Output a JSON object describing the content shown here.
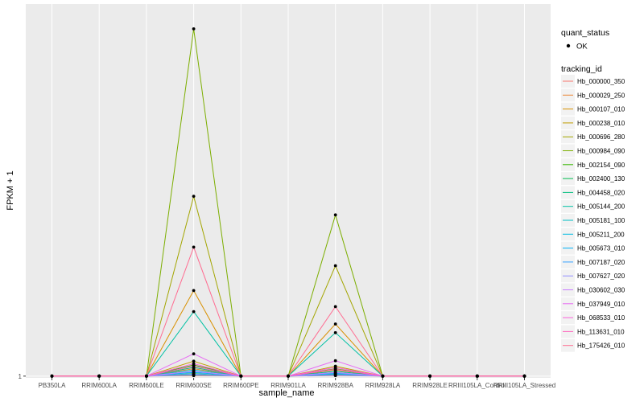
{
  "chart_data": {
    "type": "line",
    "xlabel": "sample_name",
    "ylabel": "FPKM + 1",
    "y_ticks": [
      {
        "value": 1,
        "label": "1"
      }
    ],
    "ylim": [
      0.93,
      16.0
    ],
    "grid": true,
    "legend_position": "right",
    "categories": [
      "PB350LA",
      "RRIM600LA",
      "RRIM600LE",
      "RRIM600SE",
      "RRIM600PE",
      "RRIM901LA",
      "RRIM928BA",
      "RRIM928LA",
      "RRIM928LE",
      "RRIII105LA_Control",
      "RRIII105LA_Stressed"
    ],
    "point_legend": {
      "title": "quant_status",
      "entries": [
        {
          "label": "OK"
        }
      ]
    },
    "series_legend_title": "tracking_id",
    "series": [
      {
        "name": "Hb_000000_350",
        "color": "#F8766D",
        "values": [
          1,
          1,
          1,
          1.02,
          1,
          1,
          1.02,
          1,
          1,
          1,
          1
        ]
      },
      {
        "name": "Hb_000029_250",
        "color": "#EA8331",
        "values": [
          1,
          1,
          1,
          1.3,
          1,
          1,
          1.25,
          1,
          1,
          1,
          1
        ]
      },
      {
        "name": "Hb_000107_010",
        "color": "#D89000",
        "values": [
          1,
          1,
          1,
          4.45,
          1,
          1,
          3.1,
          1,
          1,
          1,
          1
        ]
      },
      {
        "name": "Hb_000238_010",
        "color": "#C09B00",
        "values": [
          1,
          1,
          1,
          1.6,
          1,
          1,
          1.4,
          1,
          1,
          1,
          1
        ]
      },
      {
        "name": "Hb_000696_280",
        "color": "#A3A500",
        "values": [
          1,
          1,
          1,
          8.25,
          1,
          1,
          5.45,
          1,
          1,
          1,
          1
        ]
      },
      {
        "name": "Hb_000984_090",
        "color": "#7CAE00",
        "values": [
          1,
          1,
          1,
          15.0,
          1,
          1,
          7.5,
          1,
          1,
          1,
          1
        ]
      },
      {
        "name": "Hb_002154_090",
        "color": "#39B600",
        "values": [
          1,
          1,
          1,
          1.45,
          1,
          1,
          1.3,
          1,
          1,
          1,
          1
        ]
      },
      {
        "name": "Hb_002400_130",
        "color": "#00BB4E",
        "values": [
          1,
          1,
          1,
          1.1,
          1,
          1,
          1.08,
          1,
          1,
          1,
          1
        ]
      },
      {
        "name": "Hb_004458_020",
        "color": "#00BF7D",
        "values": [
          1,
          1,
          1,
          1.35,
          1,
          1,
          1.2,
          1,
          1,
          1,
          1
        ]
      },
      {
        "name": "Hb_005144_200",
        "color": "#00C1A3",
        "values": [
          1,
          1,
          1,
          3.6,
          1,
          1,
          2.75,
          1,
          1,
          1,
          1
        ]
      },
      {
        "name": "Hb_005181_100",
        "color": "#00BFC4",
        "values": [
          1,
          1,
          1,
          1.25,
          1,
          1,
          1.15,
          1,
          1,
          1,
          1
        ]
      },
      {
        "name": "Hb_005211_200",
        "color": "#00BAE0",
        "values": [
          1,
          1,
          1,
          1.05,
          1,
          1,
          1.04,
          1,
          1,
          1,
          1
        ]
      },
      {
        "name": "Hb_005673_010",
        "color": "#00B0F6",
        "values": [
          1,
          1,
          1,
          1.15,
          1,
          1,
          1.1,
          1,
          1,
          1,
          1
        ]
      },
      {
        "name": "Hb_007187_020",
        "color": "#35A2FF",
        "values": [
          1,
          1,
          1,
          1.18,
          1,
          1,
          1.12,
          1,
          1,
          1,
          1
        ]
      },
      {
        "name": "Hb_007627_020",
        "color": "#9590FF",
        "values": [
          1,
          1,
          1,
          1.08,
          1,
          1,
          1.05,
          1,
          1,
          1,
          1
        ]
      },
      {
        "name": "Hb_030602_030",
        "color": "#C77CFF",
        "values": [
          1,
          1,
          1,
          1.2,
          1,
          1,
          1.15,
          1,
          1,
          1,
          1
        ]
      },
      {
        "name": "Hb_037949_010",
        "color": "#E76BF3",
        "values": [
          1,
          1,
          1,
          1.9,
          1,
          1,
          1.62,
          1,
          1,
          1,
          1
        ]
      },
      {
        "name": "Hb_068533_010",
        "color": "#FA62DB",
        "values": [
          1,
          1,
          1,
          1.5,
          1,
          1,
          1.35,
          1,
          1,
          1,
          1
        ]
      },
      {
        "name": "Hb_113631_010",
        "color": "#FF62BC",
        "values": [
          1,
          1,
          1,
          1.4,
          1,
          1,
          1.28,
          1,
          1,
          1,
          1
        ]
      },
      {
        "name": "Hb_175426_010",
        "color": "#FF6C91",
        "values": [
          1,
          1,
          1,
          6.2,
          1,
          1,
          3.8,
          1,
          1,
          1,
          1
        ]
      }
    ]
  }
}
